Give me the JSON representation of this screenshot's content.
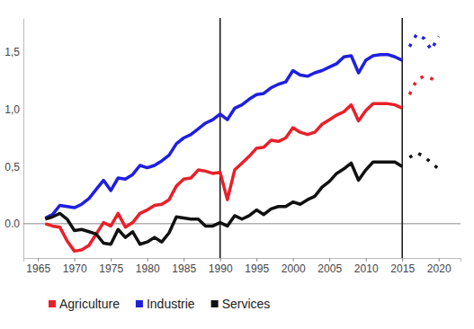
{
  "chart_data": {
    "type": "line",
    "xlim": [
      1963,
      2023
    ],
    "xticks": [
      1965,
      1970,
      1975,
      1980,
      1985,
      1990,
      1995,
      2000,
      2005,
      2010,
      2015,
      2020
    ],
    "ylim": [
      -0.3,
      1.8
    ],
    "yticks": [
      {
        "value": 0,
        "label": "0.0"
      },
      {
        "value": 0.5,
        "label": "0,5"
      },
      {
        "value": 1,
        "label": "1,0"
      },
      {
        "value": 1.5,
        "label": "1,5"
      }
    ],
    "vlines": [
      1990,
      2015
    ],
    "hlines": [
      0
    ],
    "grid": false,
    "legend": "bottom",
    "series": [
      {
        "name": "Agriculture",
        "color": "#e8202a",
        "line_style": "solid",
        "x": [
          1966,
          1967,
          1968,
          1969,
          1970,
          1971,
          1972,
          1973,
          1974,
          1975,
          1976,
          1977,
          1978,
          1979,
          1980,
          1981,
          1982,
          1983,
          1984,
          1985,
          1986,
          1987,
          1988,
          1989,
          1990,
          1991,
          1992,
          1993,
          1994,
          1995,
          1996,
          1997,
          1998,
          1999,
          2000,
          2001,
          2002,
          2003,
          2004,
          2005,
          2006,
          2007,
          2008,
          2009,
          2010,
          2011,
          2012,
          2013,
          2014,
          2015
        ],
        "values": [
          0.0,
          -0.02,
          -0.03,
          -0.15,
          -0.24,
          -0.23,
          -0.19,
          -0.09,
          0.01,
          -0.02,
          0.09,
          -0.03,
          0.01,
          0.09,
          0.12,
          0.16,
          0.17,
          0.21,
          0.33,
          0.39,
          0.4,
          0.47,
          0.46,
          0.44,
          0.45,
          0.21,
          0.47,
          0.53,
          0.59,
          0.66,
          0.67,
          0.73,
          0.72,
          0.75,
          0.84,
          0.8,
          0.78,
          0.8,
          0.87,
          0.91,
          0.95,
          0.98,
          1.04,
          0.9,
          0.99,
          1.05,
          1.05,
          1.05,
          1.04,
          1.01
        ]
      },
      {
        "name": "Industrie",
        "color": "#1f1fe0",
        "line_style": "solid",
        "x": [
          1966,
          1967,
          1968,
          1969,
          1970,
          1971,
          1972,
          1973,
          1974,
          1975,
          1976,
          1977,
          1978,
          1979,
          1980,
          1981,
          1982,
          1983,
          1984,
          1985,
          1986,
          1987,
          1988,
          1989,
          1990,
          1991,
          1992,
          1993,
          1994,
          1995,
          1996,
          1997,
          1998,
          1999,
          2000,
          2001,
          2002,
          2003,
          2004,
          2005,
          2006,
          2007,
          2008,
          2009,
          2010,
          2011,
          2012,
          2013,
          2014,
          2015
        ],
        "values": [
          0.05,
          0.08,
          0.16,
          0.15,
          0.14,
          0.17,
          0.22,
          0.3,
          0.38,
          0.29,
          0.4,
          0.39,
          0.43,
          0.51,
          0.49,
          0.51,
          0.55,
          0.6,
          0.7,
          0.75,
          0.78,
          0.83,
          0.88,
          0.91,
          0.96,
          0.91,
          1.01,
          1.04,
          1.09,
          1.13,
          1.14,
          1.19,
          1.22,
          1.24,
          1.34,
          1.3,
          1.29,
          1.32,
          1.34,
          1.37,
          1.4,
          1.46,
          1.47,
          1.32,
          1.43,
          1.47,
          1.48,
          1.48,
          1.46,
          1.43
        ]
      },
      {
        "name": "Services",
        "color": "#111111",
        "line_style": "solid",
        "x": [
          1966,
          1967,
          1968,
          1969,
          1970,
          1971,
          1972,
          1973,
          1974,
          1975,
          1976,
          1977,
          1978,
          1979,
          1980,
          1981,
          1982,
          1983,
          1984,
          1985,
          1986,
          1987,
          1988,
          1989,
          1990,
          1991,
          1992,
          1993,
          1994,
          1995,
          1996,
          1997,
          1998,
          1999,
          2000,
          2001,
          2002,
          2003,
          2004,
          2005,
          2006,
          2007,
          2008,
          2009,
          2010,
          2011,
          2012,
          2013,
          2014,
          2015
        ],
        "values": [
          0.04,
          0.06,
          0.09,
          0.04,
          -0.06,
          -0.05,
          -0.07,
          -0.09,
          -0.17,
          -0.18,
          -0.05,
          -0.12,
          -0.07,
          -0.18,
          -0.16,
          -0.12,
          -0.16,
          -0.08,
          0.06,
          0.05,
          0.04,
          0.04,
          -0.02,
          -0.02,
          0.01,
          -0.02,
          0.07,
          0.04,
          0.07,
          0.12,
          0.08,
          0.13,
          0.15,
          0.15,
          0.19,
          0.17,
          0.21,
          0.24,
          0.32,
          0.37,
          0.44,
          0.48,
          0.53,
          0.38,
          0.47,
          0.54,
          0.54,
          0.54,
          0.54,
          0.5
        ]
      },
      {
        "color": "#e8202a",
        "line_style": "dotted",
        "x": [
          2016,
          2017,
          2018,
          2019,
          2020
        ],
        "values": [
          1.13,
          1.26,
          1.29,
          1.27,
          1.23
        ]
      },
      {
        "color": "#1f1fe0",
        "line_style": "dotted",
        "x": [
          2016,
          2017,
          2018,
          2019,
          2020
        ],
        "values": [
          1.55,
          1.66,
          1.62,
          1.52,
          1.64
        ]
      },
      {
        "color": "#111111",
        "line_style": "dotted",
        "x": [
          2016,
          2017,
          2018,
          2019,
          2020
        ],
        "values": [
          0.58,
          0.62,
          0.59,
          0.53,
          0.48
        ]
      }
    ]
  }
}
